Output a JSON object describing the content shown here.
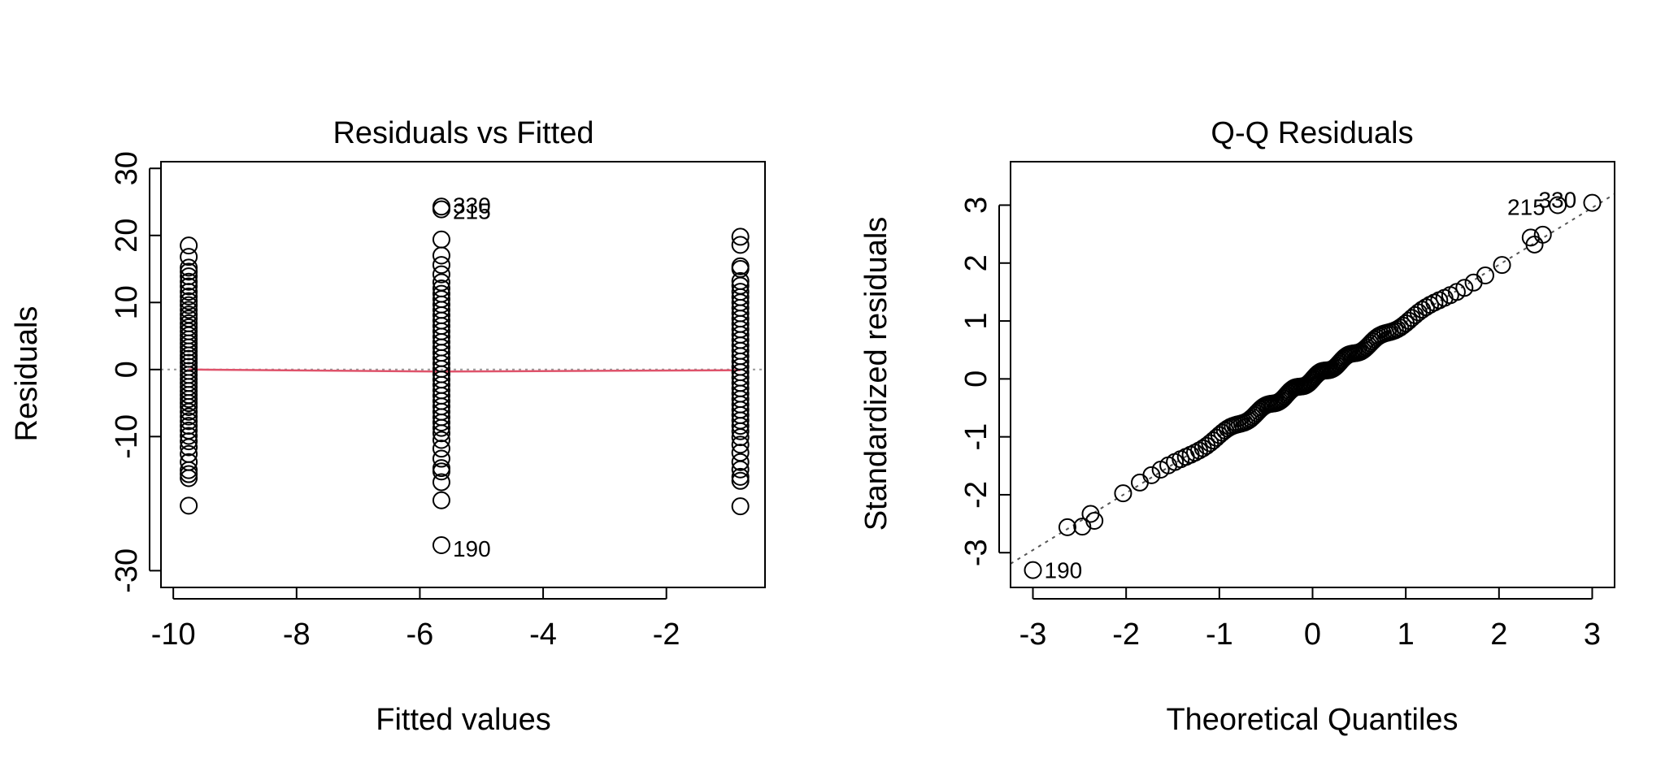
{
  "chart_data": [
    {
      "type": "scatter",
      "title": "Residuals vs Fitted",
      "xlabel": "Fitted values",
      "ylabel": "Residuals",
      "xlim": [
        -10.2,
        -0.4
      ],
      "ylim": [
        -32.5,
        31.0
      ],
      "xticks": [
        -10,
        -8,
        -6,
        -4,
        -2
      ],
      "xtick_labels": [
        "-10",
        "-8",
        "-6",
        "-4",
        "-2"
      ],
      "yticks": [
        -30,
        -10,
        0,
        10,
        20,
        30
      ],
      "ytick_labels": [
        "-30",
        "-10",
        "0",
        "10",
        "20",
        "30"
      ],
      "grid": false,
      "reference_line": {
        "y": 0,
        "style": "dotted",
        "color": "#999999"
      },
      "smooth_line": {
        "x": [
          -9.75,
          -5.65,
          -0.8
        ],
        "y": [
          0.0,
          -0.3,
          -0.1
        ],
        "color": "#DF536B"
      },
      "groups": [
        {
          "x": -9.75,
          "y": [
            18.5,
            16.8,
            15.2,
            14.6,
            13.9,
            13.1,
            12.4,
            11.6,
            10.9,
            10.2,
            9.6,
            8.9,
            8.2,
            7.6,
            6.9,
            6.3,
            5.7,
            5.1,
            4.5,
            3.9,
            3.3,
            2.7,
            2.1,
            1.6,
            1.0,
            0.4,
            -0.2,
            -0.8,
            -1.4,
            -2.0,
            -2.6,
            -3.2,
            -3.8,
            -4.4,
            -5.0,
            -5.6,
            -6.3,
            -7.0,
            -7.7,
            -8.4,
            -9.1,
            -9.9,
            -10.7,
            -11.6,
            -12.6,
            -13.8,
            -15.0,
            -15.6,
            -16.2,
            -20.3
          ]
        },
        {
          "x": -5.65,
          "y": [
            24.3,
            23.9,
            19.4,
            17.0,
            15.6,
            14.2,
            13.0,
            12.1,
            11.3,
            10.5,
            9.7,
            8.9,
            8.1,
            7.3,
            6.5,
            5.7,
            4.9,
            4.1,
            3.3,
            2.5,
            1.7,
            0.9,
            0.1,
            -0.7,
            -1.5,
            -2.3,
            -3.1,
            -3.9,
            -4.7,
            -5.5,
            -6.3,
            -7.1,
            -7.9,
            -8.7,
            -9.5,
            -10.5,
            -11.8,
            -13.3,
            -14.7,
            -15.2,
            -16.8,
            -19.5,
            -26.2
          ]
        },
        {
          "x": -0.8,
          "y": [
            19.8,
            18.6,
            15.4,
            15.0,
            13.2,
            12.5,
            11.6,
            10.8,
            10.0,
            9.2,
            8.4,
            7.6,
            6.8,
            6.0,
            5.2,
            4.4,
            3.6,
            2.8,
            2.0,
            1.2,
            0.4,
            -0.4,
            -1.2,
            -2.0,
            -2.8,
            -3.6,
            -4.4,
            -5.2,
            -6.0,
            -6.8,
            -7.6,
            -8.4,
            -9.2,
            -10.1,
            -11.2,
            -12.4,
            -13.8,
            -14.9,
            -16.0,
            -16.6,
            -20.4
          ]
        }
      ],
      "labels": [
        {
          "text": "330",
          "x": -5.65,
          "y": 24.3
        },
        {
          "text": "215",
          "x": -5.65,
          "y": 23.9
        },
        {
          "text": "190",
          "x": -5.65,
          "y": -26.2
        }
      ]
    },
    {
      "type": "scatter",
      "title": "Q-Q Residuals",
      "xlabel": "Theoretical Quantiles",
      "ylabel": "Standardized residuals",
      "xlim": [
        -3.24,
        3.24
      ],
      "ylim": [
        -3.6,
        3.75
      ],
      "xticks": [
        -3,
        -2,
        -1,
        0,
        1,
        2,
        3
      ],
      "xtick_labels": [
        "-3",
        "-2",
        "-1",
        "0",
        "1",
        "2",
        "3"
      ],
      "yticks": [
        -3,
        -2,
        -1,
        0,
        1,
        2,
        3
      ],
      "ytick_labels": [
        "-3",
        "-2",
        "-1",
        "0",
        "1",
        "2",
        "3"
      ],
      "grid": false,
      "reference_line": {
        "slope": 0.985,
        "intercept": 0.0,
        "style": "dotted",
        "color": "#555555"
      },
      "points": {
        "n": 134,
        "extra": [
          {
            "x": -3.0,
            "y": -3.3
          },
          {
            "x": -2.63,
            "y": -2.56
          },
          {
            "x": -2.47,
            "y": -2.55
          },
          {
            "x": -2.34,
            "y": -2.45
          },
          {
            "x": 2.34,
            "y": 2.44
          },
          {
            "x": 2.47,
            "y": 2.49
          },
          {
            "x": 2.63,
            "y": 3.0
          },
          {
            "x": 3.0,
            "y": 3.04
          }
        ]
      },
      "labels": [
        {
          "text": "190",
          "x": -3.0,
          "y": -3.3
        },
        {
          "text": "215",
          "x": 2.63,
          "y": 3.0
        },
        {
          "text": "330",
          "x": 3.0,
          "y": 3.04
        }
      ]
    }
  ]
}
